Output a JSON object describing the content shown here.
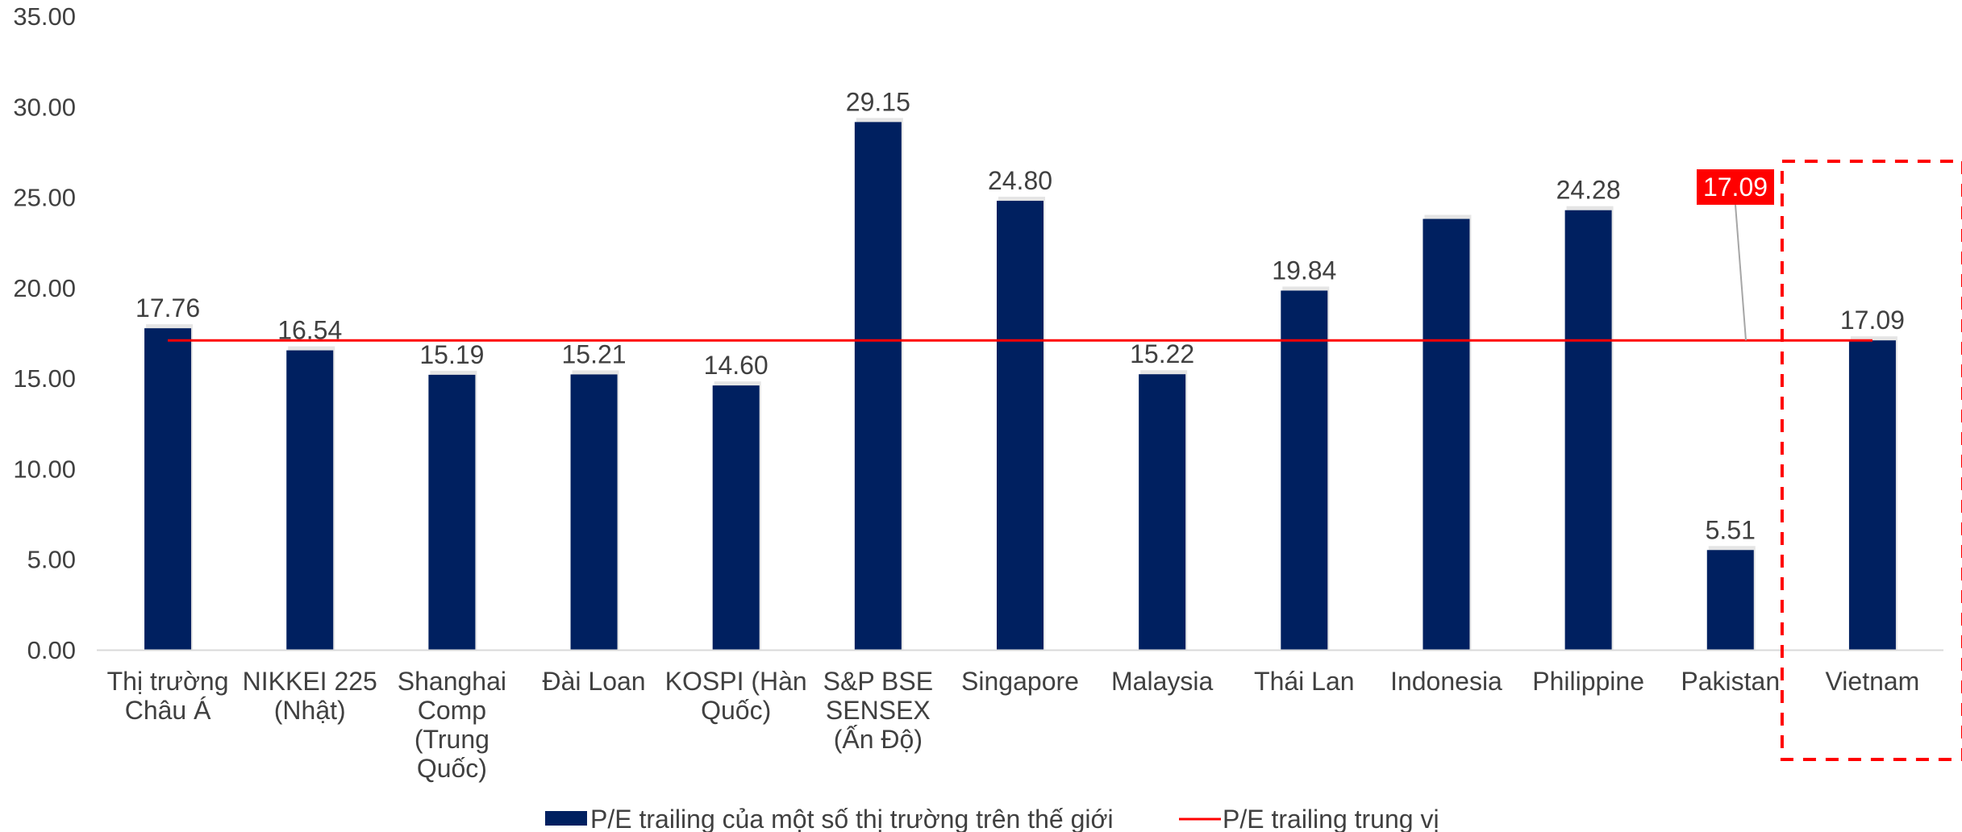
{
  "chart_data": {
    "type": "bar",
    "categories": [
      [
        "Thị trường",
        "Châu Á"
      ],
      [
        "NIKKEI 225",
        "(Nhật)"
      ],
      [
        "Shanghai",
        "Comp",
        "(Trung",
        "Quốc)"
      ],
      [
        "Đài Loan"
      ],
      [
        "KOSPI (Hàn",
        "Quốc)"
      ],
      [
        "S&P BSE",
        "SENSEX",
        "(Ấn Độ)"
      ],
      [
        "Singapore"
      ],
      [
        "Malaysia"
      ],
      [
        "Thái Lan"
      ],
      [
        "Indonesia"
      ],
      [
        "Philippine"
      ],
      [
        "Pakistan"
      ],
      [
        "Vietnam"
      ]
    ],
    "series": [
      {
        "name": "P/E trailing của một số thị trường trên thế giới",
        "type": "bar",
        "color": "#002060",
        "values": [
          17.76,
          16.54,
          15.19,
          15.21,
          14.6,
          29.15,
          24.8,
          15.22,
          19.84,
          23.8,
          24.28,
          5.51,
          17.09
        ],
        "labels": [
          "17.76",
          "16.54",
          "15.19",
          "15.21",
          "14.60",
          "29.15",
          "24.80",
          "15.22",
          "19.84",
          "",
          "24.28",
          "5.51",
          "17.09"
        ]
      },
      {
        "name": "P/E trailing trung vị",
        "type": "line",
        "color": "#ff0000",
        "value": 17.09,
        "callout": "17.09"
      }
    ],
    "y_ticks": [
      "0.00",
      "5.00",
      "10.00",
      "15.00",
      "20.00",
      "25.00",
      "30.00",
      "35.00"
    ],
    "ylim": [
      0,
      35
    ],
    "legend_position": "bottom",
    "highlight_category": "Vietnam",
    "highlight_color": "#ff0000"
  }
}
